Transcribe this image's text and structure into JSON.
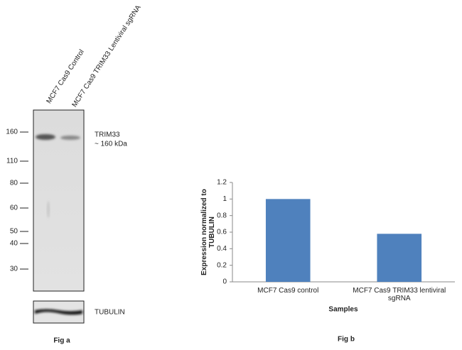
{
  "blot": {
    "lanes": [
      "MCF7 Cas9 Control",
      "MCF7 Cas9 TRIM33 Lentiviral sgRNA"
    ],
    "markers": [
      160,
      110,
      80,
      60,
      50,
      40,
      30
    ],
    "band_label": "TRIM33",
    "band_size": "~ 160 kDa",
    "loading_control": "TUBULIN",
    "caption": "Fig a"
  },
  "chart_data": {
    "type": "bar",
    "ylabel": "Expression  normalized to TUBULIN",
    "xlabel": "Samples",
    "caption": "Fig b",
    "categories": [
      "MCF7 Cas9 control",
      "MCF7 Cas9 TRIM33 lentiviral sgRNA"
    ],
    "values": [
      1,
      0.58
    ],
    "color": "#4f81bd",
    "ylim": [
      0,
      1.2
    ],
    "yticks": [
      0,
      0.2,
      0.4,
      0.6,
      0.8,
      1,
      1.2
    ]
  }
}
